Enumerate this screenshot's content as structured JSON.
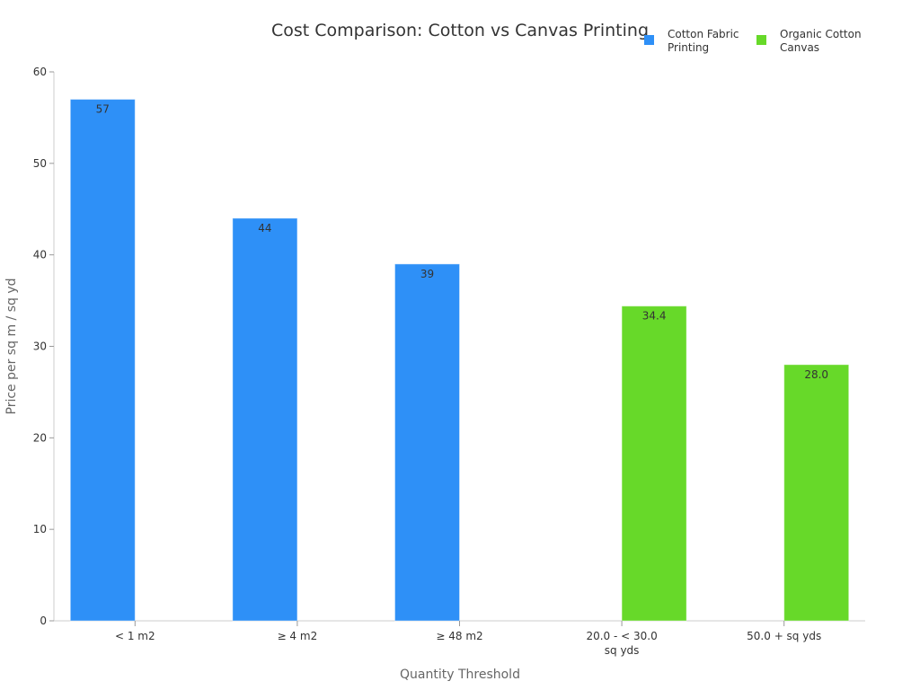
{
  "chart_data": {
    "type": "bar",
    "title": "Cost Comparison: Cotton vs Canvas Printing",
    "xlabel": "Quantity Threshold",
    "ylabel": "Price per sq m / sq yd",
    "ylim": [
      0,
      60
    ],
    "yticks": [
      0,
      10,
      20,
      30,
      40,
      50,
      60
    ],
    "grid": false,
    "legend_position": "top-right",
    "categories": [
      "< 1 m2",
      "≥ 4 m2",
      "≥ 48 m2",
      "20.0 - < 30.0 sq yds",
      "50.0 + sq yds"
    ],
    "series": [
      {
        "name": "Cotton Fabric Printing",
        "color": "#2e90f7",
        "values": [
          57,
          44,
          39,
          null,
          null
        ],
        "labels": [
          "57",
          "44",
          "39",
          null,
          null
        ]
      },
      {
        "name": "Organic Cotton Canvas",
        "color": "#67d929",
        "values": [
          null,
          null,
          null,
          34.4,
          28.0
        ],
        "labels": [
          null,
          null,
          null,
          "34.4",
          "28.0"
        ]
      }
    ]
  }
}
